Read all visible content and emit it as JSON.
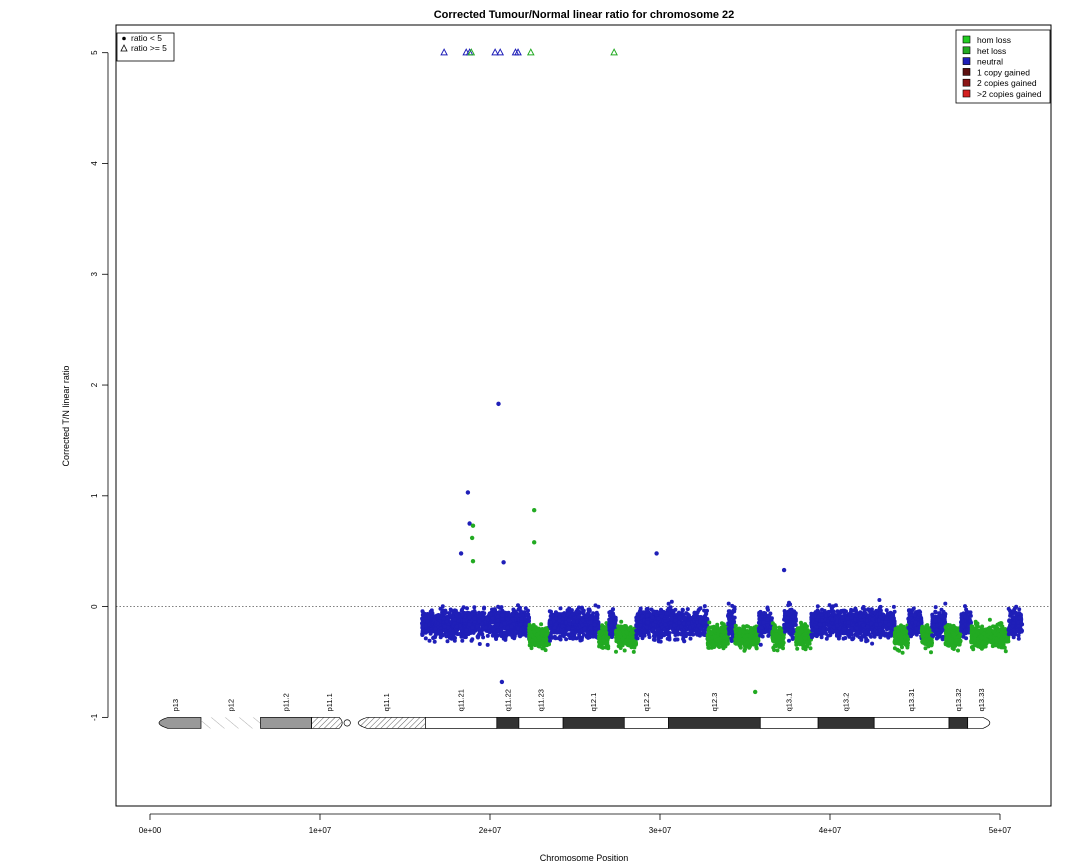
{
  "chart_data": {
    "type": "scatter",
    "title": "Corrected Tumour/Normal linear ratio for chromosome  22",
    "xlabel": "Chromosome Position",
    "ylabel": "Corrected T/N linear ratio",
    "xlim": [
      -2000000,
      53000000
    ],
    "ylim": [
      -1.8,
      5.25
    ],
    "x_ticks": [
      0,
      10000000,
      20000000,
      30000000,
      40000000,
      50000000
    ],
    "x_tick_labels": [
      "0e+00",
      "1e+07",
      "2e+07",
      "3e+07",
      "4e+07",
      "5e+07"
    ],
    "y_ticks": [
      -1,
      0,
      1,
      2,
      3,
      4,
      5
    ],
    "y_tick_labels": [
      "-1",
      "0",
      "1",
      "2",
      "3",
      "4",
      "5"
    ],
    "reference_line_y": 0,
    "data_start": 16000000,
    "data_end": 51300000,
    "shape_legend": {
      "position": "top-left",
      "items": [
        {
          "label": "ratio < 5",
          "shape": "dot"
        },
        {
          "label": "ratio >= 5",
          "shape": "triangle"
        }
      ]
    },
    "color_legend": {
      "position": "top-right",
      "items": [
        {
          "label": "hom loss",
          "color": "#22cc22"
        },
        {
          "label": "het loss",
          "color": "#22aa22"
        },
        {
          "label": "neutral",
          "color": "#1f1fb8"
        },
        {
          "label": "1 copy gained",
          "color": "#5c1010"
        },
        {
          "label": "2 copies gained",
          "color": "#8b1616"
        },
        {
          "label": ">2 copies gained",
          "color": "#d42020"
        }
      ]
    },
    "segments": [
      {
        "start": 16000000,
        "end": 22300000,
        "state": "neutral"
      },
      {
        "start": 22300000,
        "end": 23500000,
        "state": "het loss"
      },
      {
        "start": 23500000,
        "end": 26400000,
        "state": "neutral"
      },
      {
        "start": 26400000,
        "end": 27000000,
        "state": "het loss"
      },
      {
        "start": 27000000,
        "end": 27400000,
        "state": "neutral"
      },
      {
        "start": 27400000,
        "end": 28600000,
        "state": "het loss"
      },
      {
        "start": 28600000,
        "end": 32800000,
        "state": "neutral"
      },
      {
        "start": 32800000,
        "end": 34000000,
        "state": "het loss"
      },
      {
        "start": 34000000,
        "end": 34400000,
        "state": "neutral"
      },
      {
        "start": 34400000,
        "end": 35800000,
        "state": "het loss"
      },
      {
        "start": 35800000,
        "end": 36600000,
        "state": "neutral"
      },
      {
        "start": 36600000,
        "end": 37300000,
        "state": "het loss"
      },
      {
        "start": 37300000,
        "end": 38000000,
        "state": "neutral"
      },
      {
        "start": 38000000,
        "end": 38900000,
        "state": "het loss"
      },
      {
        "start": 38900000,
        "end": 43800000,
        "state": "neutral"
      },
      {
        "start": 43800000,
        "end": 44600000,
        "state": "het loss"
      },
      {
        "start": 44600000,
        "end": 45400000,
        "state": "neutral"
      },
      {
        "start": 45400000,
        "end": 46000000,
        "state": "het loss"
      },
      {
        "start": 46000000,
        "end": 46800000,
        "state": "neutral"
      },
      {
        "start": 46800000,
        "end": 47700000,
        "state": "het loss"
      },
      {
        "start": 47700000,
        "end": 48300000,
        "state": "neutral"
      },
      {
        "start": 48300000,
        "end": 50500000,
        "state": "het loss"
      },
      {
        "start": 50500000,
        "end": 51300000,
        "state": "neutral"
      }
    ],
    "outliers": [
      {
        "x": 18700000,
        "y": 1.03,
        "state": "neutral"
      },
      {
        "x": 18800000,
        "y": 0.75,
        "state": "neutral"
      },
      {
        "x": 19000000,
        "y": 0.73,
        "state": "het loss"
      },
      {
        "x": 18950000,
        "y": 0.62,
        "state": "het loss"
      },
      {
        "x": 20500000,
        "y": 1.83,
        "state": "neutral"
      },
      {
        "x": 22600000,
        "y": 0.87,
        "state": "het loss"
      },
      {
        "x": 22600000,
        "y": 0.58,
        "state": "het loss"
      },
      {
        "x": 19000000,
        "y": 0.41,
        "state": "het loss"
      },
      {
        "x": 18300000,
        "y": 0.48,
        "state": "neutral"
      },
      {
        "x": 20800000,
        "y": 0.4,
        "state": "neutral"
      },
      {
        "x": 29800000,
        "y": 0.48,
        "state": "neutral"
      },
      {
        "x": 37300000,
        "y": 0.33,
        "state": "neutral"
      },
      {
        "x": 20700000,
        "y": -0.68,
        "state": "neutral"
      },
      {
        "x": 35600000,
        "y": -0.77,
        "state": "het loss"
      }
    ],
    "capped_points": [
      {
        "x": 17300000,
        "y": 5,
        "state": "neutral"
      },
      {
        "x": 18600000,
        "y": 5,
        "state": "neutral"
      },
      {
        "x": 18800000,
        "y": 5,
        "state": "neutral"
      },
      {
        "x": 18900000,
        "y": 5,
        "state": "het loss"
      },
      {
        "x": 20300000,
        "y": 5,
        "state": "neutral"
      },
      {
        "x": 20600000,
        "y": 5,
        "state": "neutral"
      },
      {
        "x": 21500000,
        "y": 5,
        "state": "neutral"
      },
      {
        "x": 21650000,
        "y": 5,
        "state": "neutral"
      },
      {
        "x": 22400000,
        "y": 5,
        "state": "het loss"
      },
      {
        "x": 27300000,
        "y": 5,
        "state": "het loss"
      }
    ],
    "ideogram": {
      "y": -1.05,
      "centromere": 11600000,
      "bands": [
        {
          "name": "p13",
          "start": 0,
          "end": 3000000,
          "stain": "gvar"
        },
        {
          "name": "p12",
          "start": 3000000,
          "end": 6500000,
          "stain": "stalk"
        },
        {
          "name": "p11.2",
          "start": 6500000,
          "end": 9500000,
          "stain": "gpos50"
        },
        {
          "name": "p11.1",
          "start": 9500000,
          "end": 11600000,
          "stain": "acen"
        },
        {
          "name": "q11.1",
          "start": 11600000,
          "end": 16200000,
          "stain": "acen"
        },
        {
          "name": "q11.21",
          "start": 16200000,
          "end": 20400000,
          "stain": "gneg"
        },
        {
          "name": "q11.22",
          "start": 20400000,
          "end": 21700000,
          "stain": "gpos100"
        },
        {
          "name": "q11.23",
          "start": 21700000,
          "end": 24300000,
          "stain": "gneg"
        },
        {
          "name": "q12.1",
          "start": 24300000,
          "end": 27900000,
          "stain": "gpos100"
        },
        {
          "name": "q12.2",
          "start": 27900000,
          "end": 30500000,
          "stain": "gneg"
        },
        {
          "name": "q12.3",
          "start": 30500000,
          "end": 35900000,
          "stain": "gpos100"
        },
        {
          "name": "q13.1",
          "start": 35900000,
          "end": 39300000,
          "stain": "gneg"
        },
        {
          "name": "q13.2",
          "start": 39300000,
          "end": 42600000,
          "stain": "gpos100"
        },
        {
          "name": "q13.31",
          "start": 42600000,
          "end": 47000000,
          "stain": "gneg"
        },
        {
          "name": "q13.32",
          "start": 47000000,
          "end": 48100000,
          "stain": "gpos100"
        },
        {
          "name": "q13.33",
          "start": 48100000,
          "end": 49700000,
          "stain": "gneg"
        }
      ]
    }
  }
}
